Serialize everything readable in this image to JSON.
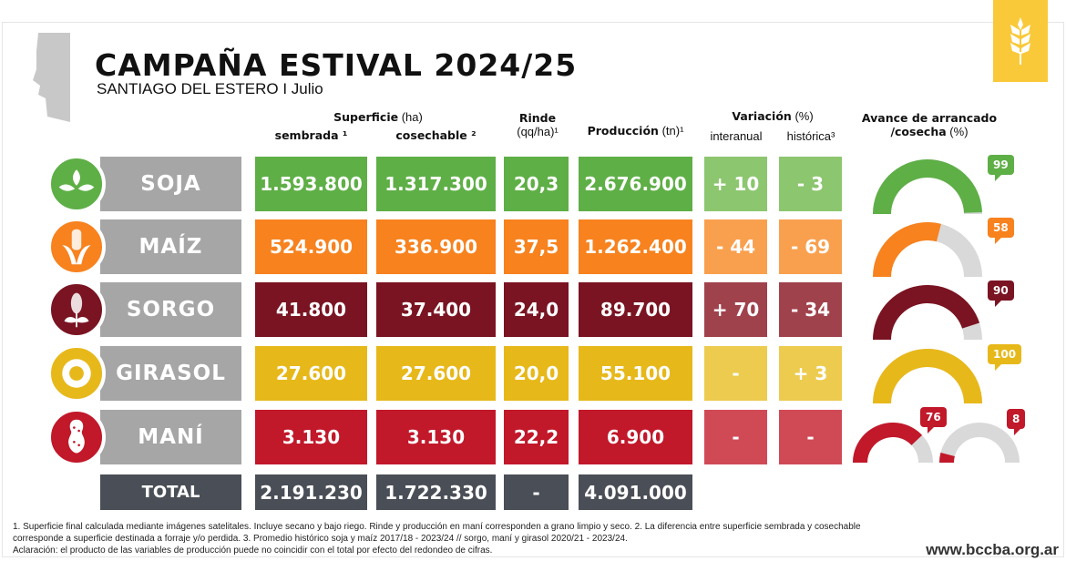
{
  "header": {
    "title": "CAMPAÑA ESTIVAL 2024/25",
    "subtitle": "SANTIAGO DEL ESTERO I Julio",
    "logo_icon": "wheat-icon",
    "map_icon": "santiago-del-estero-map-icon"
  },
  "columns": {
    "superficie": "Superficie",
    "superficie_unit": " (ha)",
    "sembrada": "sembrada ¹",
    "cosechable": "cosechable ²",
    "rinde": "Rinde",
    "rinde_unit": "(qq/ha)¹",
    "produccion": "Producción",
    "produccion_unit": " (tn)¹",
    "variacion": "Variación",
    "variacion_unit": " (%)",
    "interanual": "interanual",
    "historica": "histórica³",
    "avance": "Avance de arrancado",
    "avance2": "/cosecha",
    "avance_unit": " (%)"
  },
  "rows": [
    {
      "crop": "SOJA",
      "icon": "soybean-icon",
      "color": "#5eaf46",
      "light": "#8cc66f",
      "sembrada": "1.593.800",
      "cosechable": "1.317.300",
      "rinde": "20,3",
      "produccion": "2.676.900",
      "interanual": "+ 10",
      "historica": "- 3",
      "avance": [
        99
      ]
    },
    {
      "crop": "MAÍZ",
      "icon": "corn-icon",
      "color": "#f7821e",
      "light": "#f9a04e",
      "sembrada": "524.900",
      "cosechable": "336.900",
      "rinde": "37,5",
      "produccion": "1.262.400",
      "interanual": "- 44",
      "historica": "- 69",
      "avance": [
        58
      ]
    },
    {
      "crop": "SORGO",
      "icon": "sorghum-icon",
      "color": "#7a1422",
      "light": "#a0424c",
      "sembrada": "41.800",
      "cosechable": "37.400",
      "rinde": "24,0",
      "produccion": "89.700",
      "interanual": "+ 70",
      "historica": "- 34",
      "avance": [
        90
      ]
    },
    {
      "crop": "GIRASOL",
      "icon": "sunflower-icon",
      "color": "#e7b81a",
      "light": "#eccb4f",
      "sembrada": "27.600",
      "cosechable": "27.600",
      "rinde": "20,0",
      "produccion": "55.100",
      "interanual": "-",
      "historica": "+ 3",
      "avance": [
        100
      ]
    },
    {
      "crop": "MANÍ",
      "icon": "peanut-icon",
      "color": "#c1182a",
      "light": "#d04a56",
      "sembrada": "3.130",
      "cosechable": "3.130",
      "rinde": "22,2",
      "produccion": "6.900",
      "interanual": "-",
      "historica": "-",
      "avance": [
        76,
        8
      ]
    }
  ],
  "total": {
    "label": "TOTAL",
    "color": "#4a4e56",
    "sembrada": "2.191.230",
    "cosechable": "1.722.330",
    "rinde": "-",
    "produccion": "4.091.000"
  },
  "footer": {
    "notes": "1. Superficie final calculada mediante imágenes satelitales. Incluye secano y bajo riego. Rinde y producción en maní corresponden a grano limpio y seco. 2. La diferencia entre superficie sembrada y cosechable corresponde a superficie destinada a forraje y/o perdida. 3. Promedio histórico soja y maíz 2017/18 - 2023/24 // sorgo, maní y girasol 2020/21 - 2023/24.",
    "aclaracion": "Aclaración: el producto de las variables de producción puede no coincidir con el total por efecto del redondeo de cifras.",
    "website": "www.bccba.org.ar"
  }
}
